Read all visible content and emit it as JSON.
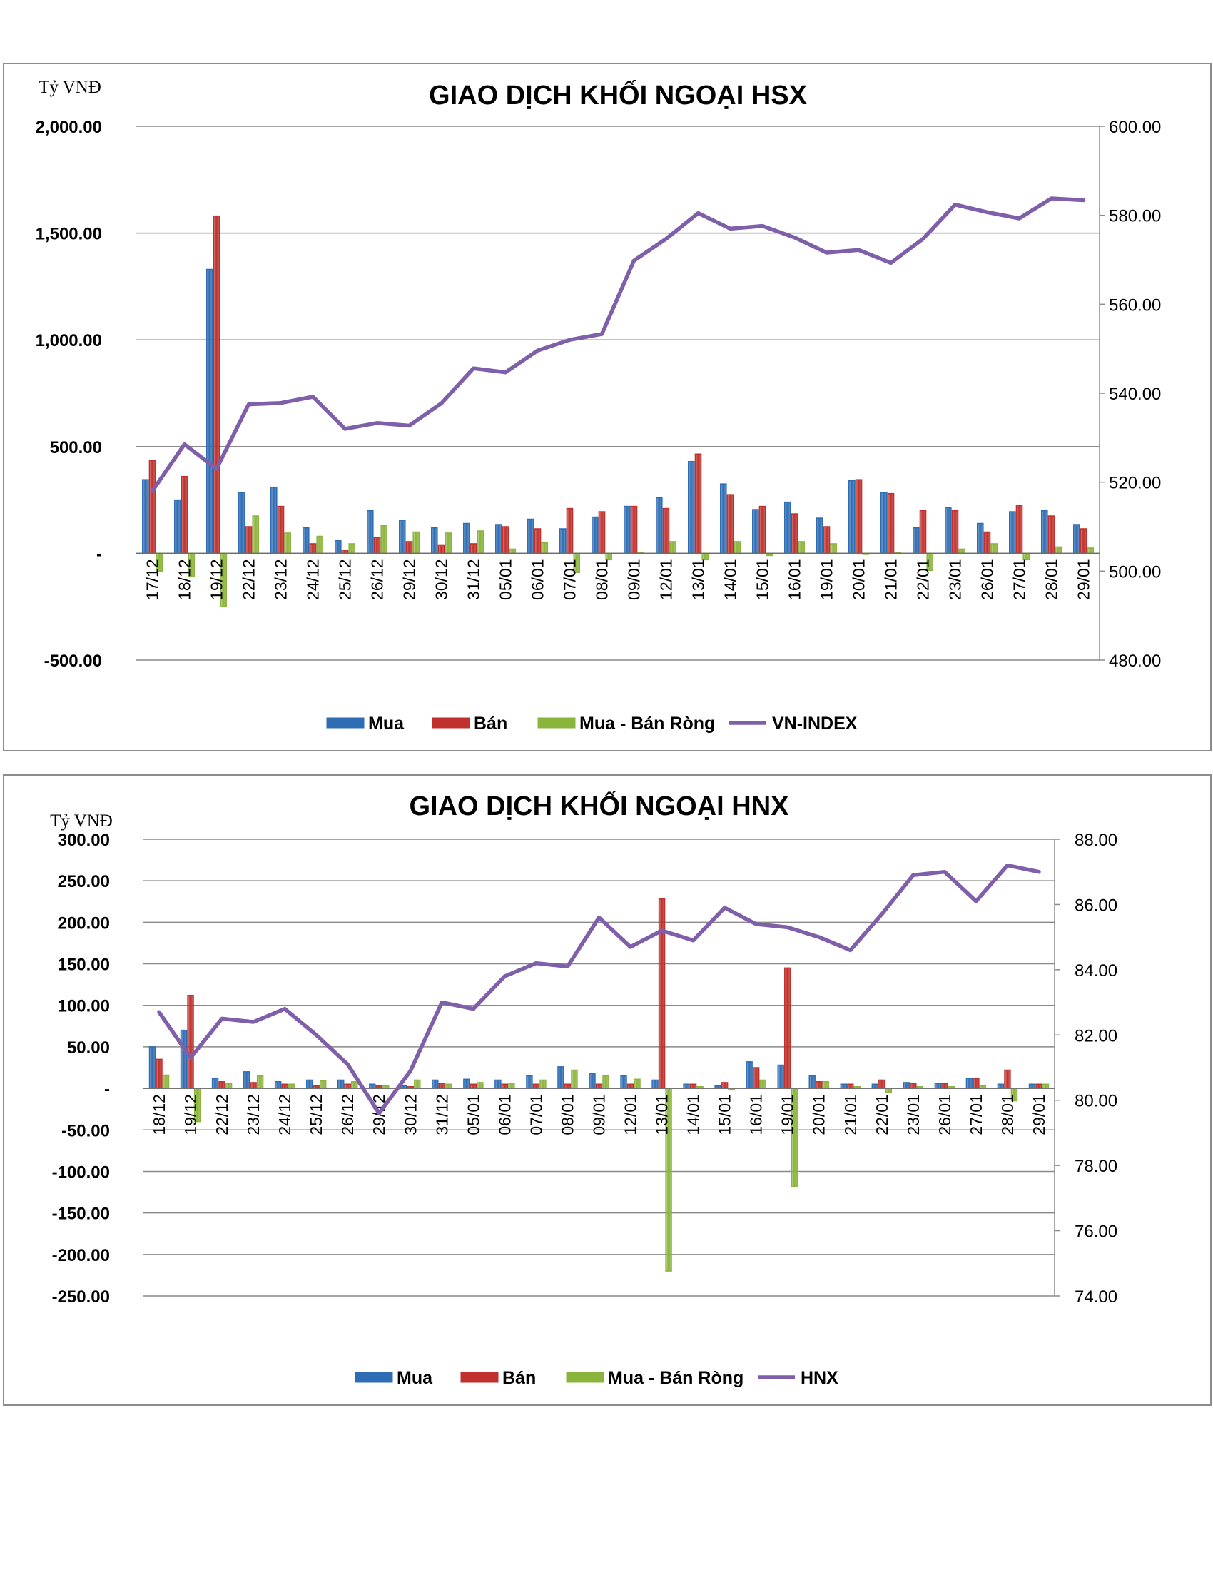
{
  "chart_data": [
    {
      "type": "bar",
      "title": "GIAO DỊCH KHỐI NGOẠI HSX",
      "ylabel": "Tỷ VNĐ",
      "ylim": [
        -500,
        2000
      ],
      "y_ticks": [
        "2,000.00",
        "1,500.00",
        "1,000.00",
        "500.00",
        "-",
        "-500.00"
      ],
      "y2lim": [
        480,
        600
      ],
      "y2_ticks": [
        "600.00",
        "580.00",
        "560.00",
        "540.00",
        "520.00",
        "500.00",
        "480.00"
      ],
      "grid": true,
      "legend_position": "bottom",
      "categories": [
        "17/12",
        "18/12",
        "19/12",
        "22/12",
        "23/12",
        "24/12",
        "25/12",
        "26/12",
        "29/12",
        "30/12",
        "31/12",
        "05/01",
        "06/01",
        "07/01",
        "08/01",
        "09/01",
        "12/01",
        "13/01",
        "14/01",
        "15/01",
        "16/01",
        "19/01",
        "20/01",
        "21/01",
        "22/01",
        "23/01",
        "26/01",
        "27/01",
        "28/01",
        "29/01"
      ],
      "series": [
        {
          "name": "Mua",
          "axis": "left",
          "color": "#2e6db4",
          "values": [
            345,
            250,
            1330,
            285,
            310,
            120,
            60,
            200,
            155,
            120,
            140,
            135,
            160,
            115,
            170,
            220,
            260,
            430,
            325,
            205,
            240,
            165,
            340,
            285,
            120,
            215,
            140,
            195,
            200,
            135
          ]
        },
        {
          "name": "Bán",
          "axis": "left",
          "color": "#c0302c",
          "values": [
            435,
            360,
            1580,
            125,
            220,
            45,
            15,
            75,
            55,
            40,
            45,
            125,
            115,
            210,
            195,
            220,
            210,
            465,
            275,
            220,
            185,
            125,
            345,
            280,
            200,
            200,
            100,
            225,
            175,
            115
          ]
        },
        {
          "name": "Mua - Bán Ròng",
          "axis": "left",
          "color": "#8ab43c",
          "values": [
            -85,
            -110,
            -250,
            175,
            95,
            80,
            45,
            130,
            100,
            95,
            105,
            20,
            50,
            -90,
            -30,
            5,
            55,
            -30,
            55,
            -10,
            55,
            45,
            -5,
            5,
            -80,
            20,
            45,
            -30,
            30,
            25
          ]
        },
        {
          "name": "VN-INDEX",
          "axis": "right",
          "type": "line",
          "color": "#7f5fa9",
          "values": [
            518,
            528.5,
            523,
            537.5,
            537.8,
            539.2,
            532,
            533.3,
            532.7,
            537.7,
            545.6,
            544.7,
            549.6,
            552,
            553.3,
            569.8,
            574.7,
            580.5,
            577,
            577.6,
            575,
            571.6,
            572.2,
            569.3,
            574.7,
            582.4,
            580.7,
            579.3,
            583.8,
            583.4
          ]
        }
      ]
    },
    {
      "type": "bar",
      "title": "GIAO DỊCH KHỐI NGOẠI HNX",
      "ylabel": "Tỷ VNĐ",
      "ylim": [
        -250,
        300
      ],
      "y_ticks": [
        "300.00",
        "250.00",
        "200.00",
        "150.00",
        "100.00",
        "50.00",
        "-",
        "-50.00",
        "-100.00",
        "-150.00",
        "-200.00",
        "-250.00"
      ],
      "y2lim": [
        74,
        88
      ],
      "y2_ticks": [
        "88.00",
        "86.00",
        "84.00",
        "82.00",
        "80.00",
        "78.00",
        "76.00",
        "74.00"
      ],
      "grid": true,
      "legend_position": "bottom",
      "categories": [
        "18/12",
        "19/12",
        "22/12",
        "23/12",
        "24/12",
        "25/12",
        "26/12",
        "29/12",
        "30/12",
        "31/12",
        "05/01",
        "06/01",
        "07/01",
        "08/01",
        "09/01",
        "12/01",
        "13/01",
        "14/01",
        "15/01",
        "16/01",
        "19/01",
        "20/01",
        "21/01",
        "22/01",
        "23/01",
        "26/01",
        "27/01",
        "28/01",
        "29/01"
      ],
      "series": [
        {
          "name": "Mua",
          "axis": "left",
          "color": "#2e6db4",
          "values": [
            50,
            70,
            12,
            20,
            8,
            10,
            10,
            5,
            3,
            10,
            11,
            10,
            15,
            26,
            18,
            15,
            10,
            5,
            3,
            32,
            28,
            15,
            5,
            5,
            7,
            6,
            12,
            5,
            5
          ]
        },
        {
          "name": "Bán",
          "axis": "left",
          "color": "#c0302c",
          "values": [
            35,
            112,
            8,
            7,
            5,
            3,
            5,
            3,
            2,
            6,
            5,
            5,
            5,
            5,
            5,
            5,
            228,
            5,
            7,
            25,
            145,
            8,
            5,
            10,
            6,
            6,
            12,
            22,
            5
          ]
        },
        {
          "name": "Mua - Bán Ròng",
          "axis": "left",
          "color": "#8ab43c",
          "values": [
            16,
            -40,
            6,
            15,
            5,
            9,
            8,
            3,
            10,
            5,
            7,
            6,
            10,
            22,
            15,
            11,
            -220,
            2,
            -2,
            10,
            -118,
            8,
            2,
            -5,
            2,
            2,
            3,
            -15,
            5
          ]
        },
        {
          "name": "HNX",
          "axis": "right",
          "type": "line",
          "color": "#7f5fa9",
          "values": [
            82.7,
            81.3,
            82.5,
            82.4,
            82.8,
            82.0,
            81.1,
            79.6,
            80.9,
            83.0,
            82.8,
            83.8,
            84.2,
            84.1,
            85.6,
            84.7,
            85.2,
            84.9,
            85.9,
            85.4,
            85.3,
            85.0,
            84.6,
            85.7,
            86.9,
            87.0,
            86.1,
            87.2,
            87.0
          ]
        }
      ]
    }
  ]
}
